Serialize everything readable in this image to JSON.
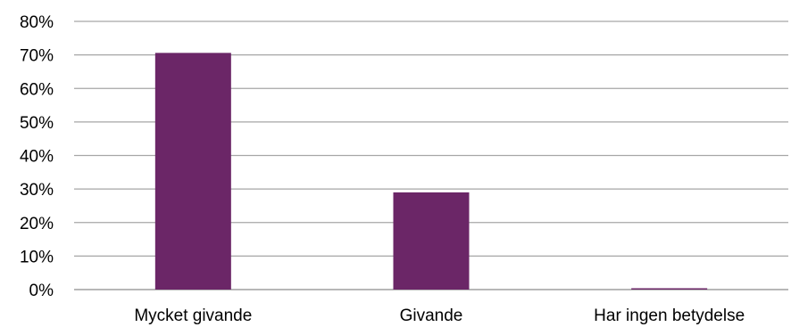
{
  "chart_data": {
    "type": "bar",
    "categories": [
      "Mycket givande",
      "Givande",
      "Har ingen betydelse"
    ],
    "values": [
      70.6,
      29.0,
      0.4
    ],
    "ylim": [
      0,
      80
    ],
    "yticks": [
      0,
      10,
      20,
      30,
      40,
      50,
      60,
      70,
      80
    ],
    "ytick_labels": [
      "0%",
      "10%",
      "20%",
      "30%",
      "40%",
      "50%",
      "60%",
      "70%",
      "80%"
    ],
    "grid": true,
    "legend": "none",
    "colors": {
      "bar": "#6b2667",
      "grid": "#a6a6a6",
      "text": "#000000"
    }
  }
}
